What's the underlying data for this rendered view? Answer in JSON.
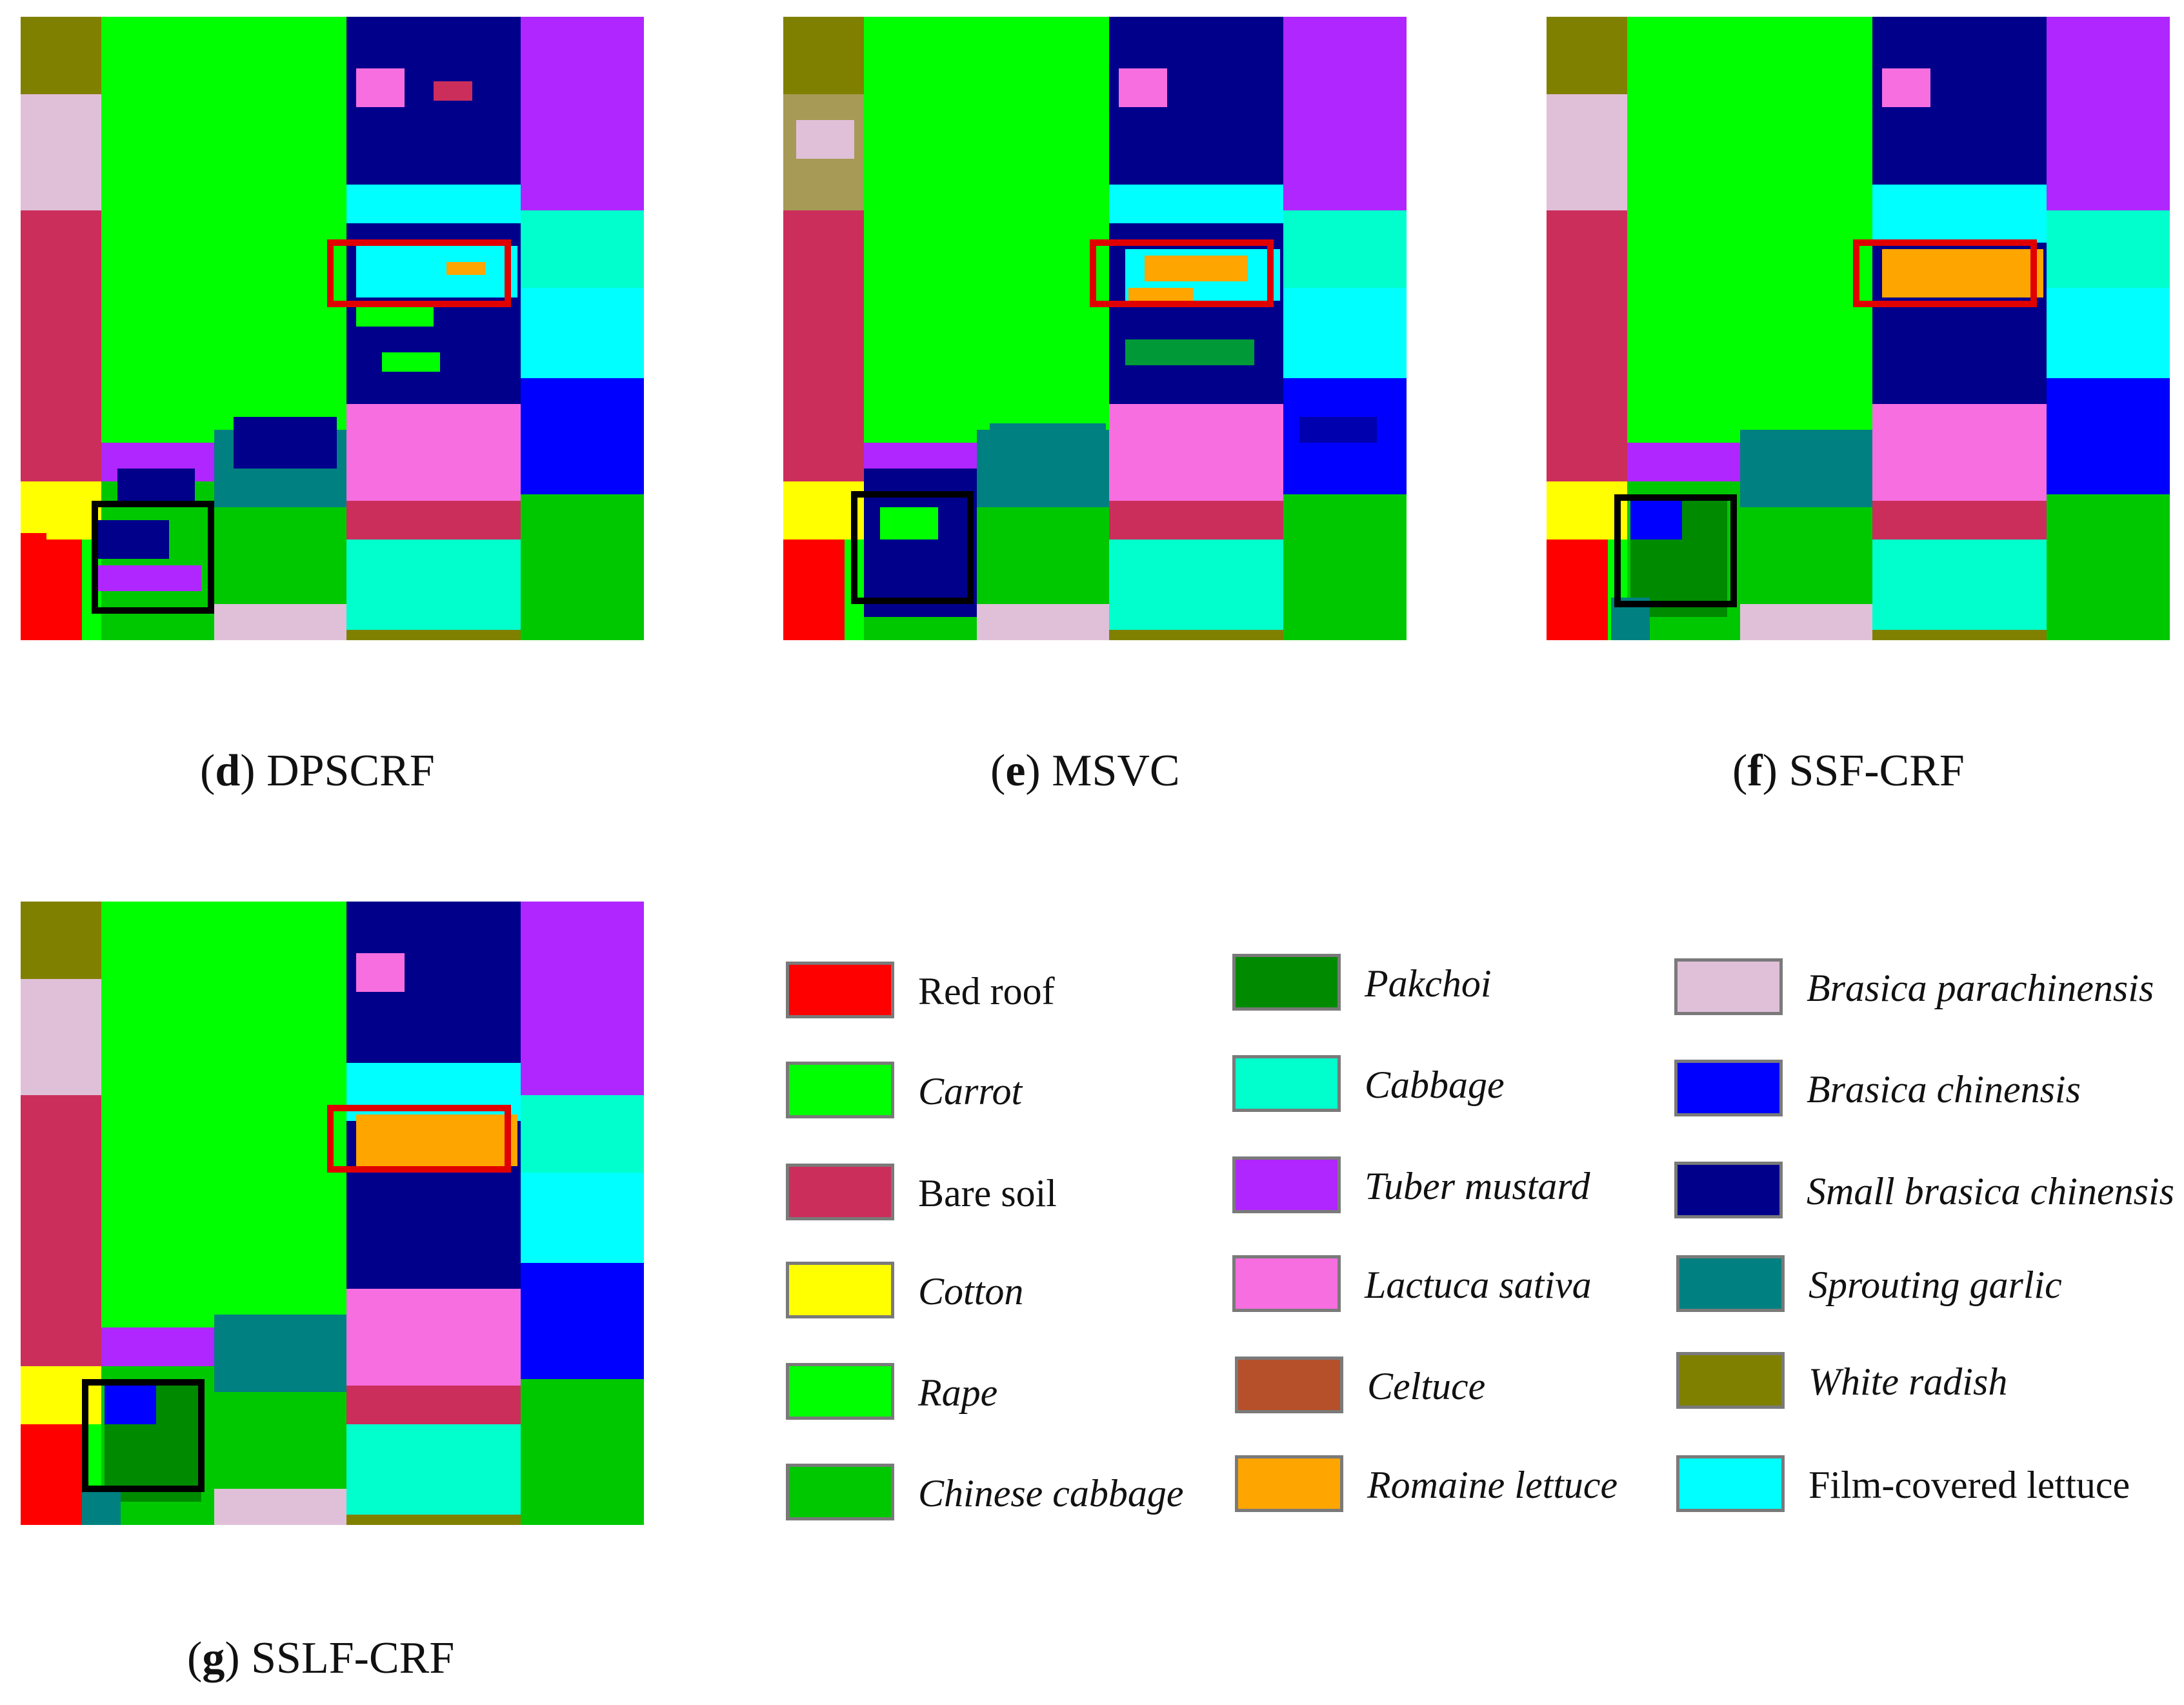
{
  "panels": [
    {
      "id": "d",
      "letter": "d",
      "method": "DPSCRF"
    },
    {
      "id": "e",
      "letter": "e",
      "method": "MSVC"
    },
    {
      "id": "f",
      "letter": "f",
      "method": "SSF-CRF"
    },
    {
      "id": "g",
      "letter": "g",
      "method": "SSLF-CRF"
    }
  ],
  "legend": {
    "items": [
      {
        "label": "Red roof",
        "color": "#ff0000",
        "italic": false
      },
      {
        "label": "Carrot",
        "color": "#00ff00",
        "italic": true
      },
      {
        "label": "Bare soil",
        "color": "#cc2e5c",
        "italic": false
      },
      {
        "label": "Cotton",
        "color": "#ffff00",
        "italic": true
      },
      {
        "label": "Rape",
        "color": "#00ff00",
        "italic": true
      },
      {
        "label": "Chinese cabbage",
        "color": "#00c800",
        "italic": true
      },
      {
        "label": "Pakchoi",
        "color": "#008a00",
        "italic": true
      },
      {
        "label": "Cabbage",
        "color": "#00ffcc",
        "italic": true
      },
      {
        "label": "Tuber mustard",
        "color": "#b026ff",
        "italic": true
      },
      {
        "label": "Lactuca sativa",
        "color": "#f66ee0",
        "italic": true
      },
      {
        "label": "Celtuce",
        "color": "#b5502a",
        "italic": true
      },
      {
        "label": "Romaine lettuce",
        "color": "#ffa500",
        "italic": true
      },
      {
        "label": "Brasica parachinensis",
        "color": "#e0c0d8",
        "italic": true
      },
      {
        "label": "Brasica chinensis",
        "color": "#0000ff",
        "italic": true
      },
      {
        "label": "Small brasica chinensis",
        "color": "#00008b",
        "italic": true
      },
      {
        "label": "Sprouting garlic",
        "color": "#008080",
        "italic": true
      },
      {
        "label": "White radish",
        "color": "#808000",
        "italic": true
      },
      {
        "label": "Film-covered lettuce",
        "color": "#00ffff",
        "italic": false
      }
    ]
  },
  "highlight_colors": {
    "red_box": "#e00000",
    "black_box": "#000000"
  }
}
